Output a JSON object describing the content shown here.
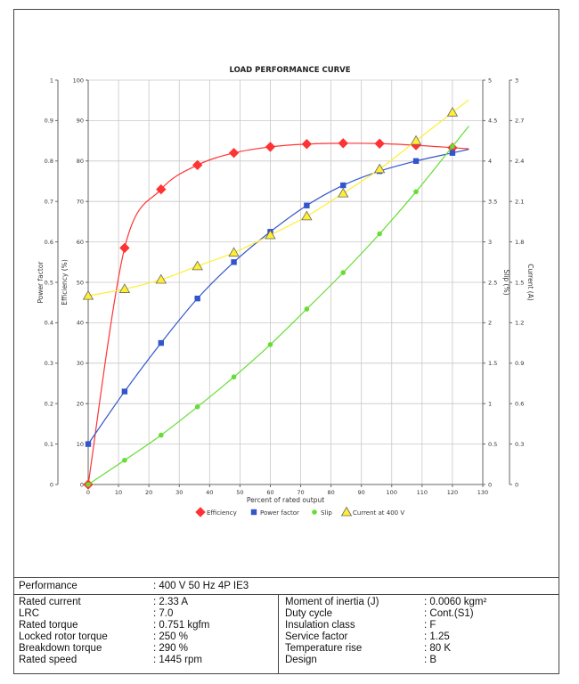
{
  "chart_data": {
    "type": "line",
    "title": "LOAD PERFORMANCE CURVE",
    "xlabel": "Percent of rated output",
    "xlim": [
      0,
      130
    ],
    "x_ticks": [
      "0",
      "10",
      "20",
      "30",
      "40",
      "50",
      "60",
      "70",
      "80",
      "90",
      "100",
      "110",
      "120",
      "130"
    ],
    "grid": true,
    "legend_position": "bottom",
    "axes": {
      "power_factor": {
        "label": "Power factor",
        "range": [
          0,
          1
        ],
        "ticks": [
          "0",
          "0.1",
          "0.2",
          "0.3",
          "0.4",
          "0.5",
          "0.6",
          "0.7",
          "0.8",
          "0.9",
          "1"
        ]
      },
      "efficiency": {
        "label": "Efficiency (%)",
        "range": [
          0,
          100
        ],
        "ticks": [
          "0",
          "10",
          "20",
          "30",
          "40",
          "50",
          "60",
          "70",
          "80",
          "90",
          "100"
        ]
      },
      "slip": {
        "label": "Slip (%)",
        "range": [
          0,
          5
        ],
        "ticks": [
          "0",
          "0.5",
          "1",
          "1.5",
          "2",
          "2.5",
          "3",
          "3.5",
          "4",
          "4.5",
          "5"
        ]
      },
      "current": {
        "label": "Current (A)",
        "range": [
          0,
          3
        ],
        "ticks": [
          "0",
          "0.3",
          "0.6",
          "0.9",
          "1.2",
          "1.5",
          "1.8",
          "2.1",
          "2.4",
          "2.7",
          "3"
        ]
      }
    },
    "series": [
      {
        "name": "Efficiency",
        "axis": "efficiency",
        "color": "#ff3333",
        "marker": "diamond",
        "x": [
          0,
          12,
          24,
          36,
          48,
          60,
          72,
          84,
          96,
          108,
          120
        ],
        "y": [
          0,
          58.5,
          73,
          79,
          82,
          83.5,
          84.2,
          84.4,
          84.3,
          83.9,
          83.3
        ]
      },
      {
        "name": "Power factor",
        "axis": "power_factor",
        "color": "#3355cc",
        "marker": "square",
        "x": [
          0,
          12,
          24,
          36,
          48,
          60,
          72,
          84,
          96,
          108,
          120
        ],
        "y": [
          0.1,
          0.23,
          0.35,
          0.46,
          0.55,
          0.625,
          0.69,
          0.74,
          0.775,
          0.8,
          0.82
        ]
      },
      {
        "name": "Slip",
        "axis": "slip",
        "color": "#66dd33",
        "marker": "circle",
        "x": [
          0,
          12,
          24,
          36,
          48,
          60,
          72,
          84,
          96,
          108,
          120
        ],
        "y": [
          0,
          0.3,
          0.61,
          0.96,
          1.33,
          1.73,
          2.17,
          2.62,
          3.1,
          3.62,
          4.18
        ]
      },
      {
        "name": "Current at 400 V",
        "axis": "current",
        "color": "#ffee33",
        "marker": "triangle",
        "x": [
          0,
          12,
          24,
          36,
          48,
          60,
          72,
          84,
          96,
          108,
          120
        ],
        "y": [
          1.4,
          1.45,
          1.52,
          1.62,
          1.72,
          1.85,
          1.99,
          2.16,
          2.34,
          2.55,
          2.76
        ]
      }
    ]
  },
  "specs": {
    "performance_label": "Performance",
    "performance_value": ": 400 V 50 Hz 4P IE3",
    "left": [
      {
        "label": "Rated current",
        "value": ": 2.33 A"
      },
      {
        "label": "LRC",
        "value": ": 7.0"
      },
      {
        "label": "Rated torque",
        "value": ": 0.751 kgfm"
      },
      {
        "label": "Locked rotor torque",
        "value": ": 250 %"
      },
      {
        "label": "Breakdown torque",
        "value": ": 290 %"
      },
      {
        "label": "Rated speed",
        "value": ": 1445 rpm"
      }
    ],
    "right": [
      {
        "label": "Moment of inertia (J)",
        "value": ": 0.0060 kgm²"
      },
      {
        "label": "Duty cycle",
        "value": ": Cont.(S1)"
      },
      {
        "label": "Insulation class",
        "value": ": F"
      },
      {
        "label": "Service factor",
        "value": ": 1.25"
      },
      {
        "label": "Temperature rise",
        "value": ": 80 K"
      },
      {
        "label": "Design",
        "value": ": B"
      }
    ]
  }
}
